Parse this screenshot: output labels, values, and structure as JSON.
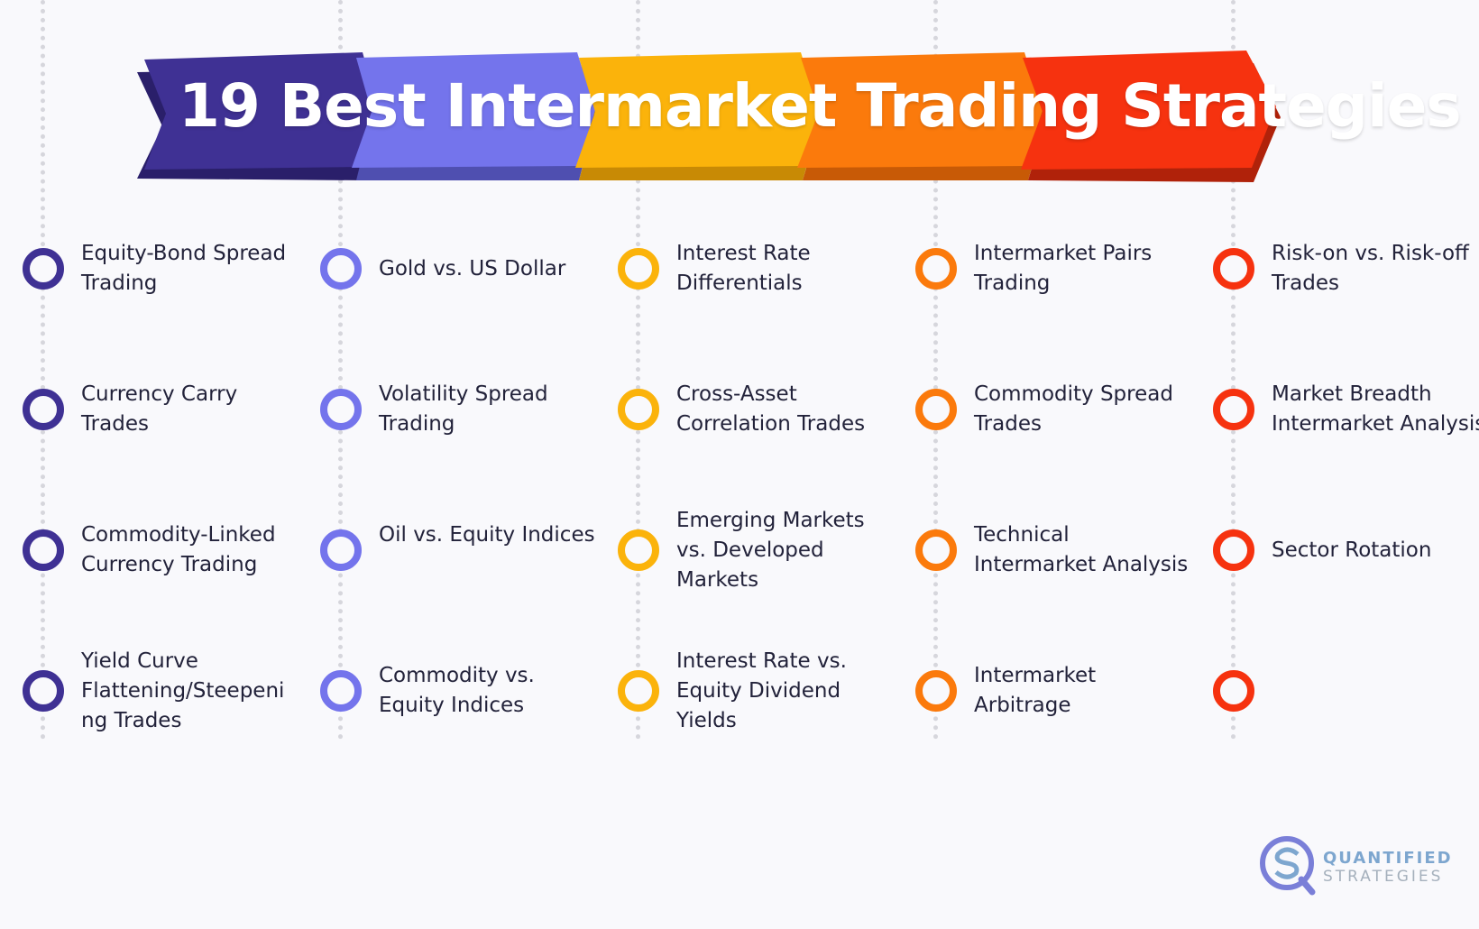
{
  "title": "19 Best Intermarket Trading Strategies",
  "colors": {
    "purple_dark": "#3f3194",
    "purple_light": "#7474ec",
    "yellow": "#fbb30b",
    "orange": "#fb7a0c",
    "red": "#f6320f"
  },
  "columns": [
    {
      "color": "#3f3194",
      "items": [
        "Equity-Bond Spread Trading",
        "Currency Carry Trades",
        "Commodity-Linked Currency Trading",
        "Yield Curve Flattening/Steepeni ng Trades"
      ]
    },
    {
      "color": "#7474ec",
      "items": [
        "Gold vs. US Dollar",
        "Volatility Spread Trading",
        "Oil vs. Equity Indices",
        "Commodity vs. Equity Indices"
      ]
    },
    {
      "color": "#fbb30b",
      "items": [
        "Interest Rate Differentials",
        "Cross-Asset Correlation Trades",
        "Emerging Markets vs. Developed Markets",
        "Interest Rate vs. Equity Dividend Yields"
      ]
    },
    {
      "color": "#fb7a0c",
      "items": [
        "Intermarket Pairs Trading",
        "Commodity Spread Trades",
        "Technical Intermarket Analysis",
        "Intermarket Arbitrage"
      ]
    },
    {
      "color": "#f6320f",
      "items": [
        "Risk-on vs. Risk-off Trades",
        "Market Breadth Intermarket Analysis",
        "Sector Rotation",
        ""
      ]
    }
  ],
  "logo": {
    "line1": "QUANTIFIED",
    "line2": "STRATEGIES",
    "color": "#7da6cf"
  }
}
